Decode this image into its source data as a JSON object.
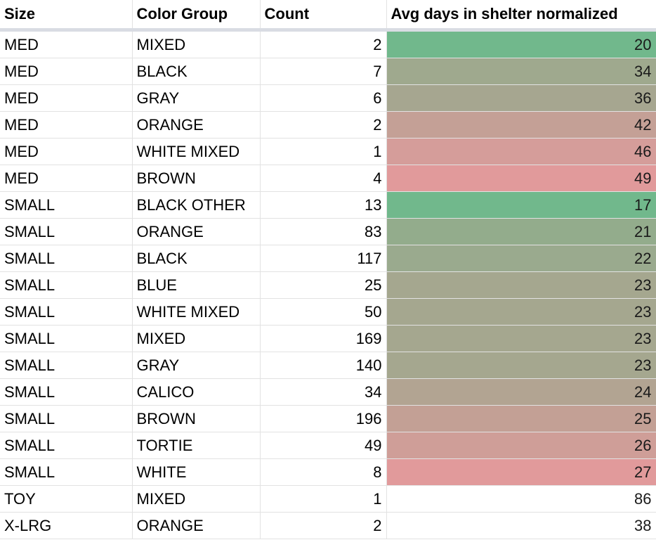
{
  "columns": {
    "size": "Size",
    "color_group": "Color Group",
    "count": "Count",
    "avg": "Avg days in shelter normalized"
  },
  "rows": [
    {
      "size": "MED",
      "color": "MIXED",
      "count": "2",
      "avg": "20",
      "bg": "#71b88c"
    },
    {
      "size": "MED",
      "color": "BLACK",
      "count": "7",
      "avg": "34",
      "bg": "#9fa98e"
    },
    {
      "size": "MED",
      "color": "GRAY",
      "count": "6",
      "avg": "36",
      "bg": "#a6a690"
    },
    {
      "size": "MED",
      "color": "ORANGE",
      "count": "2",
      "avg": "42",
      "bg": "#c4a096"
    },
    {
      "size": "MED",
      "color": "WHITE MIXED",
      "count": "1",
      "avg": "46",
      "bg": "#d59d9a"
    },
    {
      "size": "MED",
      "color": "BROWN",
      "count": "4",
      "avg": "49",
      "bg": "#e19a9b"
    },
    {
      "size": "SMALL",
      "color": "BLACK OTHER",
      "count": "13",
      "avg": "17",
      "bg": "#71b88c"
    },
    {
      "size": "SMALL",
      "color": "ORANGE",
      "count": "83",
      "avg": "21",
      "bg": "#93ac8c"
    },
    {
      "size": "SMALL",
      "color": "BLACK",
      "count": "117",
      "avg": "22",
      "bg": "#9aaa8e"
    },
    {
      "size": "SMALL",
      "color": "BLUE",
      "count": "25",
      "avg": "23",
      "bg": "#a5a78f"
    },
    {
      "size": "SMALL",
      "color": "WHITE MIXED",
      "count": "50",
      "avg": "23",
      "bg": "#a5a78f"
    },
    {
      "size": "SMALL",
      "color": "MIXED",
      "count": "169",
      "avg": "23",
      "bg": "#a5a78f"
    },
    {
      "size": "SMALL",
      "color": "GRAY",
      "count": "140",
      "avg": "23",
      "bg": "#a5a78f"
    },
    {
      "size": "SMALL",
      "color": "CALICO",
      "count": "34",
      "avg": "24",
      "bg": "#b2a492"
    },
    {
      "size": "SMALL",
      "color": "BROWN",
      "count": "196",
      "avg": "25",
      "bg": "#c3a095"
    },
    {
      "size": "SMALL",
      "color": "TORTIE",
      "count": "49",
      "avg": "26",
      "bg": "#cf9e98"
    },
    {
      "size": "SMALL",
      "color": "WHITE",
      "count": "8",
      "avg": "27",
      "bg": "#e19a9b"
    },
    {
      "size": "TOY",
      "color": "MIXED",
      "count": "1",
      "avg": "86",
      "bg": "#ffffff"
    },
    {
      "size": "X-LRG",
      "color": "ORANGE",
      "count": "2",
      "avg": "38",
      "bg": "#ffffff"
    }
  ]
}
